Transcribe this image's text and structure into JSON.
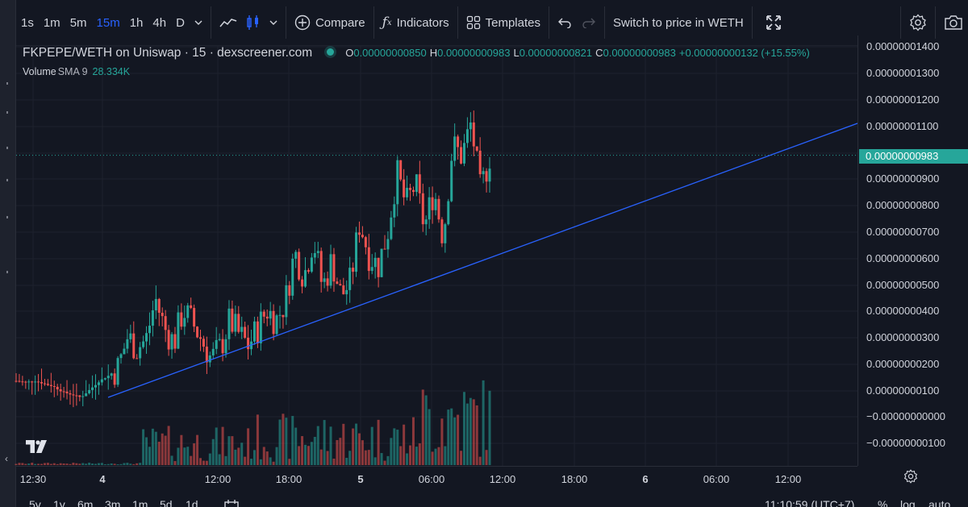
{
  "toolbar": {
    "intervals": [
      "1s",
      "1m",
      "5m",
      "15m",
      "1h",
      "4h",
      "D"
    ],
    "active_interval": "15m",
    "compare_label": "Compare",
    "indicators_label": "Indicators",
    "templates_label": "Templates",
    "switch_label": "Switch to price in WETH"
  },
  "legend": {
    "symbol": "FKPEPE/WETH on Uniswap · 15 · dexscreener.com",
    "o_label": "O",
    "o_value": "0.00000000850",
    "h_label": "H",
    "h_value": "0.00000000983",
    "l_label": "L",
    "l_value": "0.00000000821",
    "c_label": "C",
    "c_value": "0.00000000983",
    "change": "+0.00000000132 (+15.55%)",
    "volume_label": "Volume",
    "volume_sma": "SMA 9",
    "volume_value": "28.334K",
    "status_color": "#26a69a"
  },
  "price_axis": {
    "ticks": [
      "0.00000001400",
      "0.00000001300",
      "0.00000001200",
      "0.00000001100",
      "0.00000000900",
      "0.00000000800",
      "0.00000000700",
      "0.00000000600",
      "0.00000000500",
      "0.00000000400",
      "0.00000000300",
      "0.00000000200",
      "0.00000000100",
      "−0.00000000000",
      "−0.00000000100"
    ],
    "last_price": "0.00000000983"
  },
  "time_axis": {
    "labels": [
      {
        "text": "12:30",
        "bold": false
      },
      {
        "text": "4",
        "bold": true
      },
      {
        "text": "12:00",
        "bold": false
      },
      {
        "text": "18:00",
        "bold": false
      },
      {
        "text": "5",
        "bold": true
      },
      {
        "text": "06:00",
        "bold": false
      },
      {
        "text": "12:00",
        "bold": false
      },
      {
        "text": "18:00",
        "bold": false
      },
      {
        "text": "6",
        "bold": true
      },
      {
        "text": "06:00",
        "bold": false
      },
      {
        "text": "12:00",
        "bold": false
      }
    ]
  },
  "bottom_bar": {
    "ranges": [
      "5y",
      "1y",
      "6m",
      "3m",
      "1m",
      "5d",
      "1d"
    ],
    "time": "11:10:59 (UTC+7)",
    "percent_label": "%",
    "log_label": "log",
    "auto_label": "auto"
  },
  "colors": {
    "up": "#26a69a",
    "down": "#ef5350",
    "trendline": "#2962ff",
    "background": "#131722"
  },
  "chart_data": {
    "type": "candlestick",
    "pair": "FKPEPE/WETH",
    "interval": "15",
    "y_range": [
      -1.5e-09,
      1.42e-08
    ],
    "trendline": [
      [
        1e-10,
        "start"
      ],
      [
        1.11e-08,
        "end"
      ]
    ],
    "ohlc_path": [
      1.6e-09,
      1.55e-09,
      1.6e-09,
      1.5e-09,
      1.4e-09,
      1.2e-09,
      1.1e-09,
      1e-09,
      1.3e-09,
      1.6e-09,
      1.8e-09,
      2.1e-09,
      3.2e-09,
      2.8e-09,
      3.1e-09,
      4.6e-09,
      3.5e-09,
      3e-09,
      4.2e-09,
      3.7e-09,
      3.1e-09,
      2.4e-09,
      2.8e-09,
      3.8e-09,
      3.3e-09,
      2.9e-09,
      3.5e-09,
      4.2e-09,
      3.8e-09,
      4.5e-09,
      6.3e-09,
      5.4e-09,
      6.8e-09,
      5e-09,
      6e-09,
      4.7e-09,
      5.2e-09,
      7.4e-09,
      6.2e-09,
      5.8e-09,
      7e-09,
      9.2e-09,
      8e-09,
      8.8e-09,
      7.2e-09,
      8.6e-09,
      6.8e-09,
      1.02e-08,
      9.8e-09,
      1.1e-08,
      8.5e-09,
      9.8e-09
    ]
  }
}
